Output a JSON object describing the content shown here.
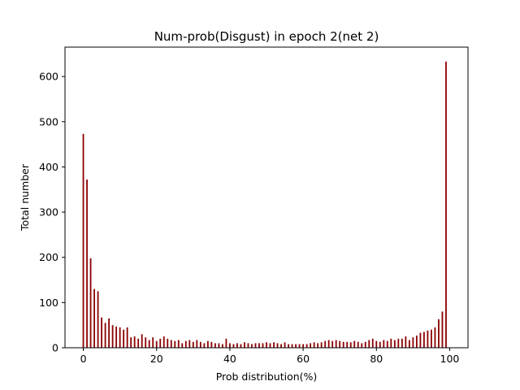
{
  "chart_data": {
    "type": "bar",
    "title": "Num-prob(Disgust) in epoch 2(net 2)",
    "xlabel": "Prob distribution(%)",
    "ylabel": "Total number",
    "xlim": [
      -5,
      105
    ],
    "ylim": [
      0,
      665
    ],
    "xticks": [
      0,
      20,
      40,
      60,
      80,
      100
    ],
    "yticks": [
      0,
      100,
      200,
      300,
      400,
      500,
      600
    ],
    "grid": false,
    "bar_color": "#8b0000",
    "x": [
      0,
      1,
      2,
      3,
      4,
      5,
      6,
      7,
      8,
      9,
      10,
      11,
      12,
      13,
      14,
      15,
      16,
      17,
      18,
      19,
      20,
      21,
      22,
      23,
      24,
      25,
      26,
      27,
      28,
      29,
      30,
      31,
      32,
      33,
      34,
      35,
      36,
      37,
      38,
      39,
      40,
      41,
      42,
      43,
      44,
      45,
      46,
      47,
      48,
      49,
      50,
      51,
      52,
      53,
      54,
      55,
      56,
      57,
      58,
      59,
      60,
      61,
      62,
      63,
      64,
      65,
      66,
      67,
      68,
      69,
      70,
      71,
      72,
      73,
      74,
      75,
      76,
      77,
      78,
      79,
      80,
      81,
      82,
      83,
      84,
      85,
      86,
      87,
      88,
      89,
      90,
      91,
      92,
      93,
      94,
      95,
      96,
      97,
      98,
      99
    ],
    "values": [
      473,
      372,
      198,
      130,
      125,
      67,
      55,
      65,
      50,
      47,
      45,
      40,
      45,
      23,
      25,
      20,
      30,
      23,
      17,
      23,
      15,
      20,
      25,
      20,
      17,
      15,
      17,
      10,
      15,
      17,
      13,
      17,
      13,
      10,
      15,
      13,
      10,
      10,
      8,
      20,
      10,
      8,
      10,
      8,
      12,
      10,
      8,
      10,
      10,
      10,
      12,
      10,
      12,
      10,
      8,
      12,
      8,
      8,
      8,
      8,
      8,
      8,
      10,
      12,
      10,
      12,
      15,
      17,
      15,
      17,
      15,
      13,
      13,
      12,
      15,
      13,
      10,
      13,
      17,
      20,
      15,
      13,
      17,
      15,
      20,
      17,
      20,
      20,
      25,
      17,
      23,
      27,
      33,
      35,
      38,
      40,
      45,
      63,
      80,
      633
    ]
  }
}
